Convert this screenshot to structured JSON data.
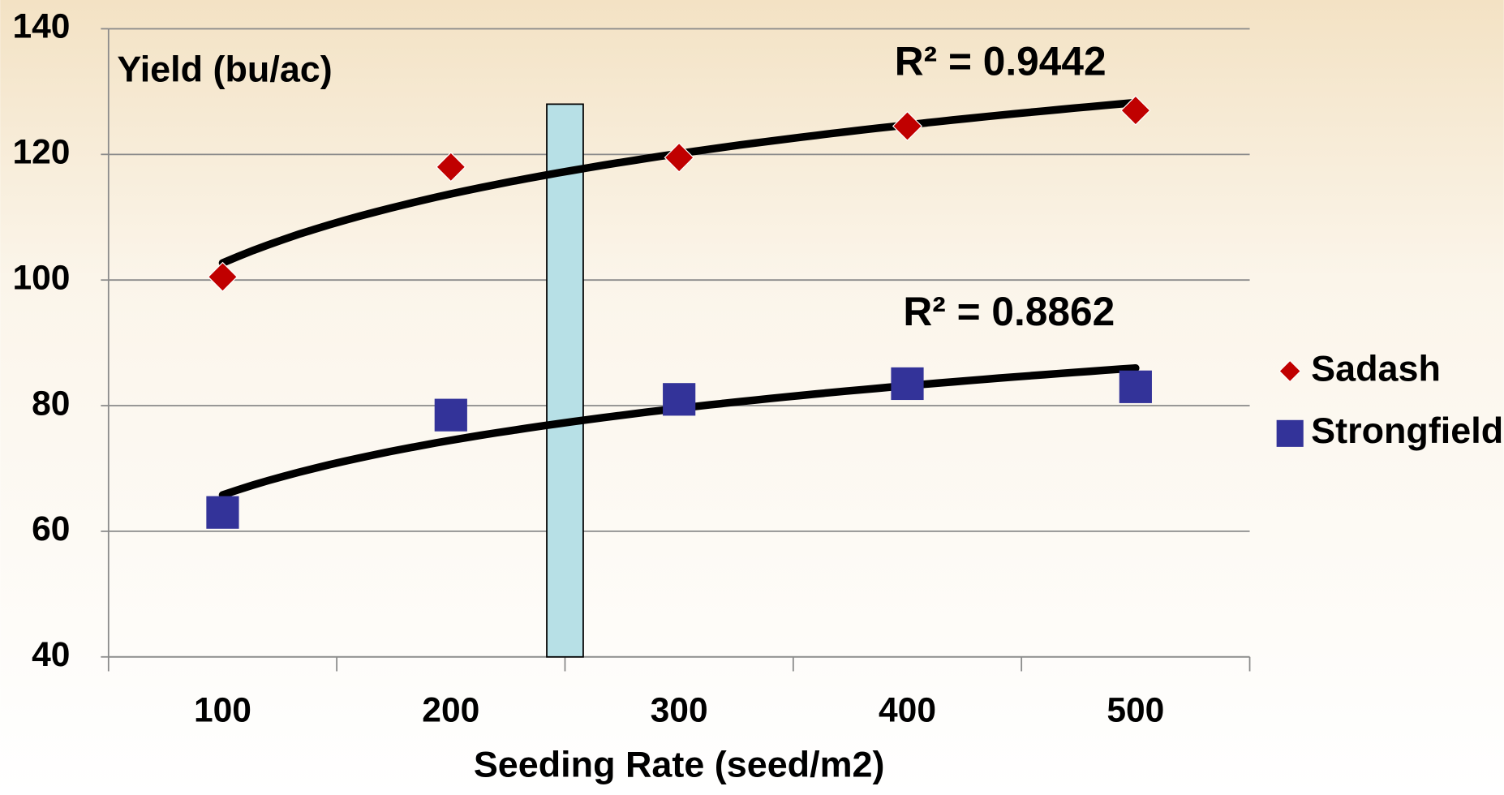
{
  "chart_data": {
    "type": "scatter",
    "y_label": "Yield (bu/ac)",
    "x_label": "Seeding Rate (seed/m2)",
    "x": [
      100,
      200,
      300,
      400,
      500
    ],
    "xlim": [
      50,
      550
    ],
    "ylim": [
      40,
      140
    ],
    "yticks": [
      40,
      60,
      80,
      100,
      120,
      140
    ],
    "grid": true,
    "legend": "right",
    "series": [
      {
        "name": "Sadash",
        "color": "#c00000",
        "marker": "diamond",
        "values": [
          100.5,
          118,
          119.5,
          124.5,
          127
        ],
        "trendline": {
          "type": "log",
          "label": "R² = 0.9442"
        }
      },
      {
        "name": "Strongfield",
        "color": "#333399",
        "marker": "square",
        "values": [
          63,
          78.5,
          81,
          83.5,
          83
        ],
        "trendline": {
          "type": "log",
          "label": "R² = 0.8862"
        }
      }
    ],
    "reference_bar": {
      "x": 250,
      "top": 128,
      "color": "#b7e0e6"
    }
  }
}
